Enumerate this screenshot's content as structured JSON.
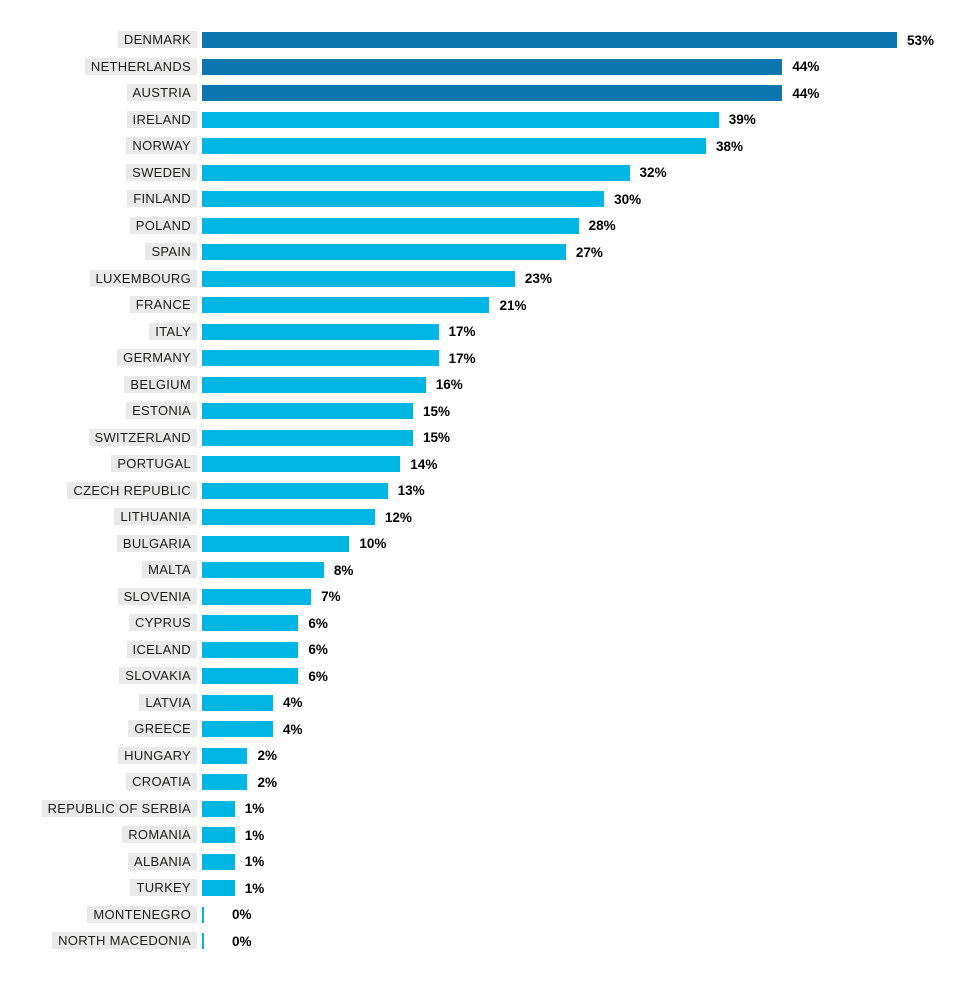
{
  "chart_data": {
    "type": "bar",
    "orientation": "horizontal",
    "title": "",
    "xlabel": "",
    "ylabel": "",
    "unit": "%",
    "xlim": [
      0,
      53
    ],
    "grid": false,
    "legend": false,
    "categories": [
      "DENMARK",
      "NETHERLANDS",
      "AUSTRIA",
      "IRELAND",
      "NORWAY",
      "SWEDEN",
      "FINLAND",
      "POLAND",
      "SPAIN",
      "LUXEMBOURG",
      "FRANCE",
      "ITALY",
      "GERMANY",
      "BELGIUM",
      "ESTONIA",
      "SWITZERLAND",
      "PORTUGAL",
      "CZECH REPUBLIC",
      "LITHUANIA",
      "BULGARIA",
      "MALTA",
      "SLOVENIA",
      "CYPRUS",
      "ICELAND",
      "SLOVAKIA",
      "LATVIA",
      "GREECE",
      "HUNGARY",
      "CROATIA",
      "REPUBLIC OF SERBIA",
      "ROMANIA",
      "ALBANIA",
      "TURKEY",
      "MONTENEGRO",
      "NORTH MACEDONIA"
    ],
    "values": [
      53,
      44,
      44,
      39,
      38,
      32,
      30,
      28,
      27,
      23,
      21,
      17,
      17,
      16,
      15,
      15,
      14,
      13,
      12,
      10,
      8,
      7,
      6,
      6,
      6,
      4,
      4,
      2,
      2,
      1,
      1,
      1,
      1,
      0,
      0
    ],
    "value_labels": [
      "53%",
      "44%",
      "44%",
      "39%",
      "38%",
      "32%",
      "30%",
      "28%",
      "27%",
      "23%",
      "21%",
      "17%",
      "17%",
      "16%",
      "15%",
      "15%",
      "14%",
      "13%",
      "12%",
      "10%",
      "8%",
      "7%",
      "6%",
      "6%",
      "6%",
      "4%",
      "4%",
      "2%",
      "2%",
      "1%",
      "1%",
      "1%",
      "1%",
      "0%",
      "0%"
    ],
    "highlight_indices": [
      0,
      1,
      2
    ],
    "colors": {
      "bar_highlight": "#0e76ae",
      "bar_normal": "#00b6e3",
      "label_background": "#e9e9e9",
      "label_text": "#1d1d1b",
      "value_text": "#000000"
    }
  }
}
